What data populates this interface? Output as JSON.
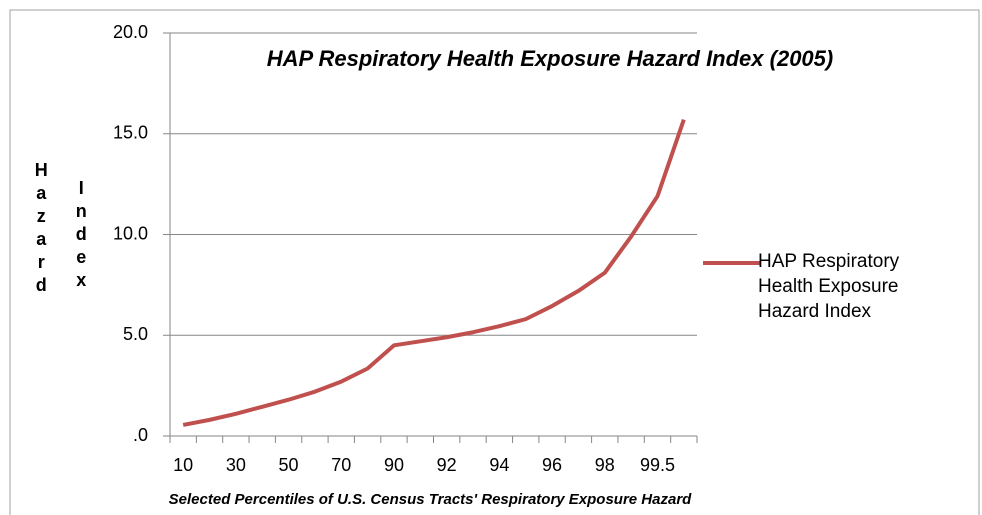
{
  "chart_data": {
    "type": "line",
    "title": "HAP Respiratory Health Exposure Hazard Index (2005)",
    "x_label": "Selected Percentiles of U.S. Census Tracts' Respiratory Exposure Hazard",
    "y_label": [
      "Hazard",
      "Index"
    ],
    "categories": [
      "10",
      null,
      "30",
      null,
      "50",
      null,
      "70",
      null,
      "90",
      null,
      "92",
      null,
      "94",
      null,
      "96",
      null,
      "98",
      null,
      "99.5",
      null
    ],
    "series": [
      {
        "name": "HAP Respiratory Health Exposure Hazard Index",
        "color": "#c0504d",
        "values": [
          0.55,
          0.8,
          1.1,
          1.45,
          1.8,
          2.2,
          2.7,
          3.35,
          4.5,
          4.7,
          4.9,
          5.15,
          5.45,
          5.8,
          6.45,
          7.2,
          8.1,
          9.9,
          11.9,
          15.7
        ]
      }
    ],
    "ylim": [
      0,
      20
    ],
    "yticks": [
      {
        "value": 0,
        "label": ".0"
      },
      {
        "value": 5,
        "label": "5.0"
      },
      {
        "value": 10,
        "label": "10.0"
      },
      {
        "value": 15,
        "label": "15.0"
      },
      {
        "value": 20,
        "label": "20.0"
      }
    ],
    "grid": true,
    "legend": "right"
  }
}
